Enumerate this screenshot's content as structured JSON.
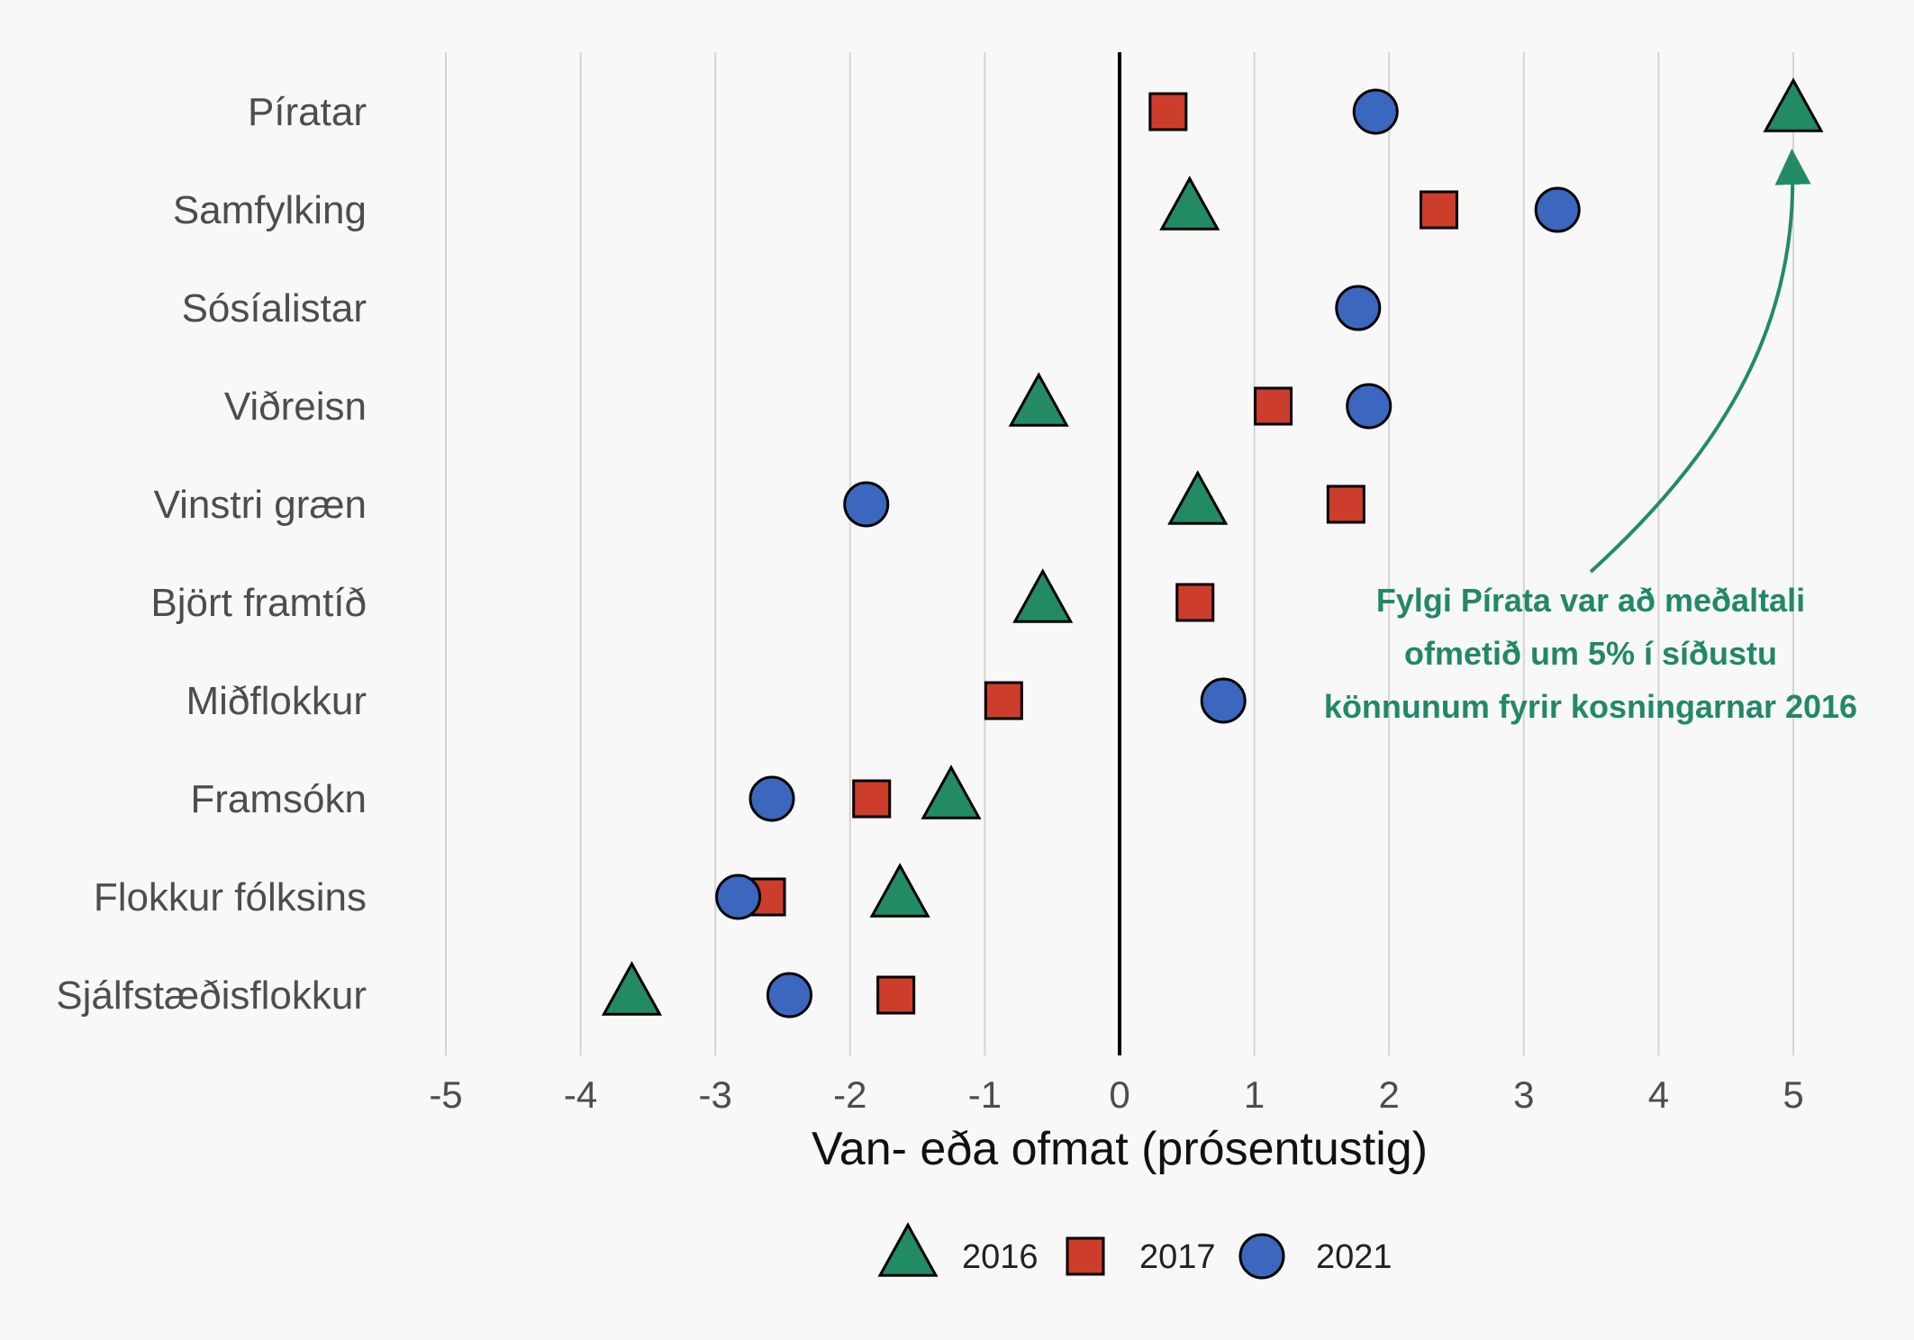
{
  "chart_data": {
    "type": "scatter",
    "title": "",
    "xlabel": "Van- eða ofmat (prósentustig)",
    "ylabel": "",
    "xlim": [
      -5,
      5
    ],
    "x_ticks": [
      -5,
      -4,
      -3,
      -2,
      -1,
      0,
      1,
      2,
      3,
      4,
      5
    ],
    "x_tick_labels": [
      "-5",
      "-4",
      "-3",
      "-2",
      "-1",
      "0",
      "1",
      "2",
      "3",
      "4",
      "5"
    ],
    "grid": true,
    "legend_position": "bottom",
    "categories": [
      "Píratar",
      "Samfylking",
      "Sósíalistar",
      "Viðreisn",
      "Vinstri græn",
      "Björt framtíð",
      "Miðflokkur",
      "Framsókn",
      "Flokkur fólksins",
      "Sjálfstæðisflokkur"
    ],
    "series": [
      {
        "name": "2016",
        "marker": "triangle",
        "color": "#238b63",
        "values": [
          5.0,
          0.52,
          null,
          -0.6,
          0.58,
          -0.57,
          null,
          -1.25,
          -1.63,
          -3.62
        ]
      },
      {
        "name": "2017",
        "marker": "square",
        "color": "#cc3d2b",
        "values": [
          0.36,
          2.37,
          null,
          1.14,
          1.68,
          0.56,
          -0.86,
          -1.84,
          -2.62,
          -1.66
        ]
      },
      {
        "name": "2021",
        "marker": "circle",
        "color": "#3b67bf",
        "values": [
          1.9,
          3.25,
          1.77,
          1.85,
          -1.88,
          null,
          0.77,
          -2.58,
          -2.83,
          -2.45
        ]
      }
    ],
    "annotation": {
      "lines": [
        "Fylgi Pírata var að meðaltali",
        "ofmetið um 5% í síðustu",
        "könnunum fyrir kosningarnar 2016"
      ],
      "color": "#228866",
      "points_to": {
        "category": "Píratar",
        "series": "2016",
        "x": 5.0
      }
    }
  }
}
